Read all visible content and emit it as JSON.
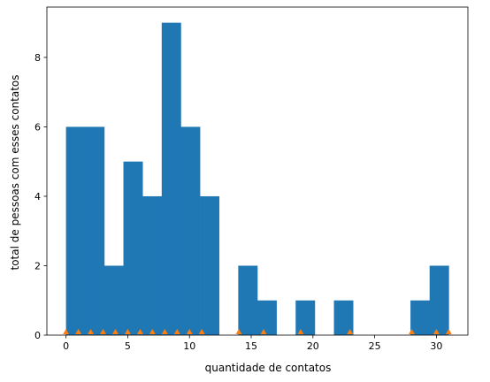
{
  "chart_data": {
    "type": "bar",
    "xlabel": "quantidade de contatos",
    "ylabel": "total de pessoas com esses contatos",
    "xlim": [
      -1.55,
      32.55
    ],
    "ylim": [
      0,
      9.45
    ],
    "xticks": [
      0,
      5,
      10,
      15,
      20,
      25,
      30
    ],
    "yticks": [
      0,
      2,
      4,
      6,
      8
    ],
    "bin_width": 1.55,
    "bins": [
      {
        "start": 0.0,
        "count": 6
      },
      {
        "start": 1.55,
        "count": 6
      },
      {
        "start": 3.1,
        "count": 2
      },
      {
        "start": 4.65,
        "count": 5
      },
      {
        "start": 6.2,
        "count": 4
      },
      {
        "start": 7.75,
        "count": 9
      },
      {
        "start": 9.3,
        "count": 6
      },
      {
        "start": 10.85,
        "count": 4
      },
      {
        "start": 12.4,
        "count": 0
      },
      {
        "start": 13.95,
        "count": 2
      },
      {
        "start": 15.5,
        "count": 1
      },
      {
        "start": 17.05,
        "count": 0
      },
      {
        "start": 18.6,
        "count": 1
      },
      {
        "start": 20.15,
        "count": 0
      },
      {
        "start": 21.7,
        "count": 1
      },
      {
        "start": 23.25,
        "count": 0
      },
      {
        "start": 24.8,
        "count": 0
      },
      {
        "start": 26.35,
        "count": 0
      },
      {
        "start": 27.9,
        "count": 1
      },
      {
        "start": 29.45,
        "count": 2
      }
    ],
    "markers": [
      0,
      1,
      2,
      3,
      4,
      5,
      6,
      7,
      8,
      9,
      10,
      11,
      14,
      16,
      19,
      23,
      28,
      30,
      31
    ],
    "bar_color": "#1f77b4",
    "marker_color": "#ff7f0e",
    "grid": false
  }
}
